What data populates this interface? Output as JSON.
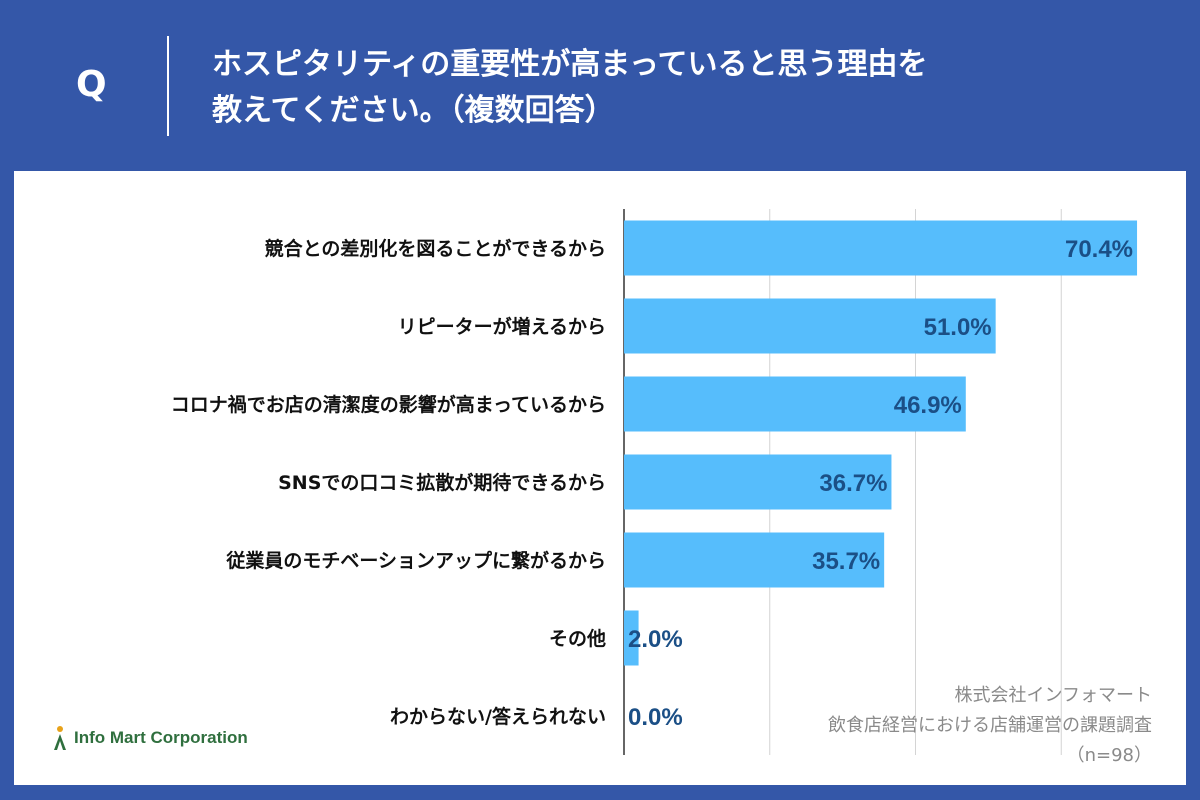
{
  "question": {
    "label": "Q",
    "line1": "ホスピタリティの重要性が高まっていると思う理由を",
    "line2": "教えてください。（複数回答）"
  },
  "chart_data": {
    "type": "bar",
    "orientation": "horizontal",
    "categories": [
      "競合との差別化を図ることができるから",
      "リピーターが増えるから",
      "コロナ禍でお店の清潔度の影響が高まっているから",
      "SNSでの口コミ拡散が期待できるから",
      "従業員のモチベーションアップに繋がるから",
      "その他",
      "わからない/答えられない"
    ],
    "values": [
      70.4,
      51.0,
      46.9,
      36.7,
      35.7,
      2.0,
      0.0
    ],
    "value_labels": [
      "70.4%",
      "51.0%",
      "46.9%",
      "36.7%",
      "35.7%",
      "2.0%",
      "0.0%"
    ],
    "xlim": [
      0,
      80
    ],
    "grid": true,
    "bar_color": "#56bdfc",
    "label_color": "#1b4f86"
  },
  "source": {
    "company": "株式会社インフォマート",
    "survey": "飲食店経営における店舗運営の課題調査",
    "sample": "（n=98）"
  },
  "logo": {
    "text": "Info Mart Corporation",
    "icon": "info-mart-logo-icon"
  },
  "colors": {
    "header_bg": "#3457a8",
    "panel_bg": "#ffffff",
    "logo_green": "#2f6f3e"
  }
}
